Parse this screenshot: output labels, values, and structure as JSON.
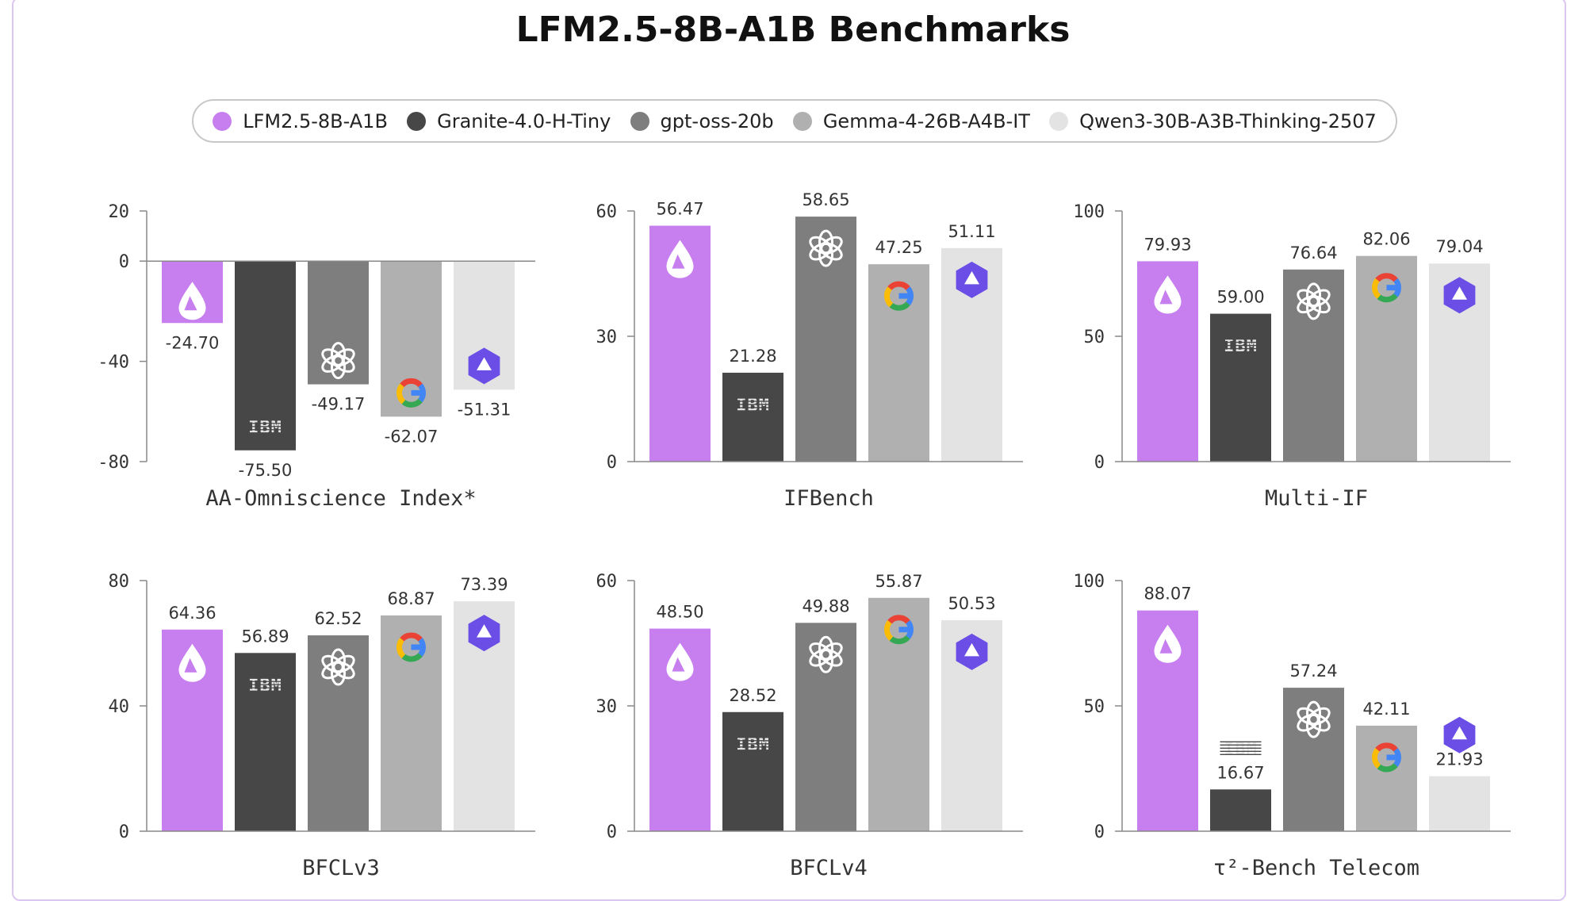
{
  "title": "LFM2.5-8B-A1B Benchmarks",
  "colors": {
    "LFM2.5-8B-A1B": "#c77ff0",
    "Granite-4.0-H-Tiny": "#474747",
    "gpt-oss-20b": "#7e7e7e",
    "Gemma-4-26B-A4B-IT": "#b0b0b0",
    "Qwen3-30B-A3B-Thinking-2507": "#e3e3e3"
  },
  "legend": [
    {
      "label": "LFM2.5-8B-A1B",
      "color": "#c77ff0"
    },
    {
      "label": "Granite-4.0-H-Tiny",
      "color": "#474747"
    },
    {
      "label": "gpt-oss-20b",
      "color": "#7e7e7e"
    },
    {
      "label": "Gemma-4-26B-A4B-IT",
      "color": "#b0b0b0"
    },
    {
      "label": "Qwen3-30B-A3B-Thinking-2507",
      "color": "#e3e3e3"
    }
  ],
  "series_icons": [
    "liquid-logo-icon",
    "ibm-logo-icon",
    "openai-logo-icon",
    "google-logo-icon",
    "qwen-logo-icon"
  ],
  "ibm_text": "IBM",
  "chart_data": [
    {
      "type": "bar",
      "title": "AA-Omniscience Index*",
      "ylim": [
        -80,
        20
      ],
      "yticks": [
        20,
        0,
        -40,
        -80
      ],
      "categories": [
        "LFM2.5-8B-A1B",
        "Granite-4.0-H-Tiny",
        "gpt-oss-20b",
        "Gemma-4-26B-A4B-IT",
        "Qwen3-30B-A3B-Thinking-2507"
      ],
      "values": [
        -24.7,
        -75.5,
        -49.17,
        -62.07,
        -51.31
      ],
      "labels": [
        "-24.70",
        "-75.50",
        "-49.17",
        "-62.07",
        "-51.31"
      ]
    },
    {
      "type": "bar",
      "title": "IFBench",
      "ylim": [
        0,
        60
      ],
      "yticks": [
        60,
        30,
        0
      ],
      "categories": [
        "LFM2.5-8B-A1B",
        "Granite-4.0-H-Tiny",
        "gpt-oss-20b",
        "Gemma-4-26B-A4B-IT",
        "Qwen3-30B-A3B-Thinking-2507"
      ],
      "values": [
        56.47,
        21.28,
        58.65,
        47.25,
        51.11
      ],
      "labels": [
        "56.47",
        "21.28",
        "58.65",
        "47.25",
        "51.11"
      ]
    },
    {
      "type": "bar",
      "title": "Multi-IF",
      "ylim": [
        0,
        100
      ],
      "yticks": [
        100,
        50,
        0
      ],
      "categories": [
        "LFM2.5-8B-A1B",
        "Granite-4.0-H-Tiny",
        "gpt-oss-20b",
        "Gemma-4-26B-A4B-IT",
        "Qwen3-30B-A3B-Thinking-2507"
      ],
      "values": [
        79.93,
        59.0,
        76.64,
        82.06,
        79.04
      ],
      "labels": [
        "79.93",
        "59.00",
        "76.64",
        "82.06",
        "79.04"
      ]
    },
    {
      "type": "bar",
      "title": "BFCLv3",
      "ylim": [
        0,
        80
      ],
      "yticks": [
        80,
        40,
        0
      ],
      "categories": [
        "LFM2.5-8B-A1B",
        "Granite-4.0-H-Tiny",
        "gpt-oss-20b",
        "Gemma-4-26B-A4B-IT",
        "Qwen3-30B-A3B-Thinking-2507"
      ],
      "values": [
        64.36,
        56.89,
        62.52,
        68.87,
        73.39
      ],
      "labels": [
        "64.36",
        "56.89",
        "62.52",
        "68.87",
        "73.39"
      ]
    },
    {
      "type": "bar",
      "title": "BFCLv4",
      "ylim": [
        0,
        60
      ],
      "yticks": [
        60,
        30,
        0
      ],
      "categories": [
        "LFM2.5-8B-A1B",
        "Granite-4.0-H-Tiny",
        "gpt-oss-20b",
        "Gemma-4-26B-A4B-IT",
        "Qwen3-30B-A3B-Thinking-2507"
      ],
      "values": [
        48.5,
        28.52,
        49.88,
        55.87,
        50.53
      ],
      "labels": [
        "48.50",
        "28.52",
        "49.88",
        "55.87",
        "50.53"
      ]
    },
    {
      "type": "bar",
      "title": "τ²-Bench Telecom",
      "ylim": [
        0,
        100
      ],
      "yticks": [
        100,
        50,
        0
      ],
      "categories": [
        "LFM2.5-8B-A1B",
        "Granite-4.0-H-Tiny",
        "gpt-oss-20b",
        "Gemma-4-26B-A4B-IT",
        "Qwen3-30B-A3B-Thinking-2507"
      ],
      "values": [
        88.07,
        16.67,
        57.24,
        42.11,
        21.93
      ],
      "labels": [
        "88.07",
        "16.67",
        "57.24",
        "42.11",
        "21.93"
      ]
    }
  ]
}
